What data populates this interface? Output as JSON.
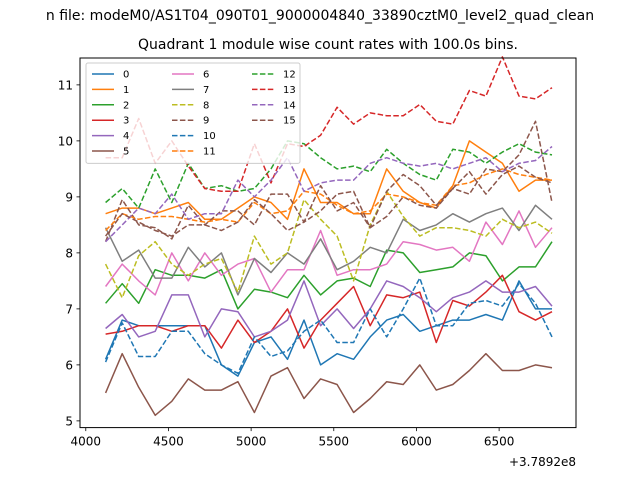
{
  "chart_data": {
    "type": "line",
    "suptitle": "n file: modeM0/AS1T04_090T01_9000004840_33890cztM0_level2_quad_clean",
    "title": "Quadrant 1 module wise count rates with 100.0s bins.",
    "xlabel": "",
    "ylabel": "",
    "x_offset_label": "+3.7892e8",
    "xlim": [
      3965,
      6965
    ],
    "ylim": [
      4.88,
      11.48
    ],
    "x_ticks": [
      4000,
      4500,
      5000,
      5500,
      6000,
      6500
    ],
    "x_tick_labels": [
      "4000",
      "4500",
      "5000",
      "5500",
      "6000",
      "6500"
    ],
    "y_ticks": [
      5,
      6,
      7,
      8,
      9,
      10,
      11
    ],
    "y_tick_labels": [
      "5",
      "6",
      "7",
      "8",
      "9",
      "10",
      "11"
    ],
    "legend_position": "top-left",
    "legend_columns": 3,
    "x": [
      4120,
      4220,
      4320,
      4420,
      4520,
      4620,
      4720,
      4820,
      4920,
      5020,
      5120,
      5220,
      5320,
      5420,
      5520,
      5620,
      5720,
      5820,
      5920,
      6020,
      6120,
      6220,
      6320,
      6420,
      6520,
      6620,
      6720,
      6820
    ],
    "series": [
      {
        "name": "0",
        "color": "#1f77b4",
        "dash": "solid",
        "values": [
          6.1,
          6.8,
          6.7,
          6.7,
          6.7,
          6.7,
          6.7,
          6.0,
          5.8,
          6.4,
          6.5,
          6.1,
          6.8,
          6.0,
          6.2,
          6.1,
          6.5,
          6.8,
          6.9,
          6.6,
          6.7,
          6.8,
          6.8,
          6.9,
          6.8,
          7.5,
          7.0,
          7.0
        ]
      },
      {
        "name": "1",
        "color": "#ff7f0e",
        "dash": "solid",
        "values": [
          8.7,
          8.8,
          8.8,
          8.7,
          8.8,
          8.9,
          8.6,
          8.6,
          8.8,
          9.0,
          8.9,
          8.6,
          9.5,
          8.9,
          8.9,
          8.7,
          8.7,
          9.5,
          9.1,
          8.9,
          8.8,
          9.2,
          10.0,
          9.8,
          9.6,
          9.1,
          9.3,
          9.3
        ]
      },
      {
        "name": "2",
        "color": "#2ca02c",
        "dash": "solid",
        "values": [
          7.1,
          7.45,
          7.1,
          7.7,
          7.6,
          7.6,
          7.55,
          7.7,
          7.0,
          7.35,
          7.3,
          7.2,
          7.6,
          7.25,
          7.5,
          7.55,
          7.4,
          8.05,
          8.0,
          7.65,
          7.7,
          7.75,
          8.0,
          7.95,
          7.5,
          7.75,
          7.75,
          8.2
        ]
      },
      {
        "name": "3",
        "color": "#d62728",
        "dash": "solid",
        "values": [
          6.55,
          6.6,
          6.7,
          6.7,
          6.6,
          6.7,
          6.7,
          6.3,
          6.8,
          6.4,
          6.6,
          7.0,
          6.3,
          6.8,
          7.1,
          7.4,
          6.7,
          7.25,
          7.2,
          7.3,
          6.4,
          7.15,
          7.05,
          7.3,
          7.6,
          6.95,
          6.8,
          6.95
        ]
      },
      {
        "name": "4",
        "color": "#9467bd",
        "dash": "solid",
        "values": [
          6.65,
          6.9,
          6.5,
          6.6,
          7.25,
          7.25,
          6.5,
          7.0,
          6.95,
          6.5,
          6.6,
          6.8,
          7.5,
          6.7,
          7.0,
          6.65,
          7.0,
          7.5,
          7.4,
          7.2,
          6.95,
          7.2,
          7.3,
          7.5,
          7.3,
          7.3,
          7.4,
          7.05
        ]
      },
      {
        "name": "5",
        "color": "#8c564b",
        "dash": "solid",
        "values": [
          5.5,
          6.2,
          5.6,
          5.1,
          5.35,
          5.75,
          5.55,
          5.55,
          5.7,
          5.15,
          5.8,
          5.95,
          5.4,
          5.75,
          5.65,
          5.15,
          5.4,
          5.7,
          5.65,
          6.0,
          5.55,
          5.65,
          5.9,
          6.2,
          5.9,
          5.9,
          6.0,
          5.95
        ]
      },
      {
        "name": "6",
        "color": "#e377c2",
        "dash": "solid",
        "values": [
          7.4,
          7.8,
          7.5,
          7.25,
          8.0,
          7.5,
          8.0,
          7.6,
          7.8,
          7.9,
          7.3,
          7.7,
          7.7,
          8.4,
          7.6,
          7.7,
          7.7,
          7.8,
          8.2,
          8.15,
          8.05,
          8.1,
          7.85,
          8.55,
          8.15,
          8.75,
          8.1,
          8.45
        ]
      },
      {
        "name": "7",
        "color": "#7f7f7f",
        "dash": "solid",
        "values": [
          8.45,
          7.85,
          8.05,
          7.55,
          7.55,
          8.1,
          7.75,
          8.0,
          7.25,
          7.9,
          7.65,
          8.0,
          7.8,
          8.25,
          7.7,
          7.85,
          8.1,
          8.0,
          8.6,
          8.4,
          8.5,
          8.7,
          8.55,
          8.7,
          8.8,
          8.4,
          8.85,
          8.6
        ]
      },
      {
        "name": "8",
        "color": "#bcbd22",
        "dash": "dashed",
        "values": [
          7.8,
          7.2,
          7.95,
          8.2,
          7.8,
          7.6,
          7.8,
          7.9,
          7.3,
          8.3,
          7.8,
          8.0,
          8.95,
          8.6,
          8.3,
          7.5,
          8.5,
          9.1,
          8.65,
          8.3,
          8.45,
          8.45,
          8.4,
          8.3,
          8.6,
          8.45,
          8.55,
          8.35
        ]
      },
      {
        "name": "9",
        "color": "#8c564b",
        "dash": "dashed",
        "values": [
          8.2,
          8.95,
          8.5,
          8.45,
          8.25,
          8.85,
          8.5,
          8.75,
          8.75,
          8.5,
          9.05,
          9.05,
          8.55,
          8.75,
          9.05,
          9.1,
          8.45,
          8.65,
          9.0,
          8.85,
          8.8,
          9.15,
          9.05,
          9.5,
          9.45,
          9.75,
          10.35,
          8.9
        ]
      },
      {
        "name": "10",
        "color": "#1f77b4",
        "dash": "dashed",
        "values": [
          6.05,
          6.75,
          6.15,
          6.15,
          6.6,
          6.6,
          6.2,
          6.0,
          5.85,
          6.5,
          6.15,
          6.25,
          6.6,
          6.8,
          6.4,
          6.4,
          7.0,
          6.5,
          7.0,
          7.55,
          6.7,
          6.7,
          7.1,
          7.15,
          7.05,
          7.45,
          7.1,
          6.5
        ]
      },
      {
        "name": "11",
        "color": "#ff7f0e",
        "dash": "dashed",
        "values": [
          8.4,
          8.7,
          8.6,
          8.65,
          8.65,
          8.6,
          8.55,
          8.6,
          8.55,
          8.9,
          8.7,
          8.75,
          9.1,
          9.05,
          8.85,
          8.7,
          8.75,
          9.05,
          9.0,
          8.9,
          8.85,
          9.2,
          9.25,
          9.4,
          9.5,
          9.4,
          9.35,
          9.3
        ]
      },
      {
        "name": "12",
        "color": "#2ca02c",
        "dash": "dashed",
        "values": [
          8.9,
          9.15,
          8.8,
          9.5,
          8.9,
          9.6,
          9.15,
          9.2,
          9.1,
          9.15,
          9.5,
          10.0,
          9.95,
          9.7,
          9.5,
          9.55,
          9.45,
          9.85,
          9.6,
          9.4,
          9.3,
          9.85,
          9.8,
          9.6,
          9.8,
          9.95,
          9.8,
          9.75
        ]
      },
      {
        "name": "13",
        "color": "#d62728",
        "dash": "dashed",
        "values": [
          9.7,
          9.7,
          10.4,
          9.6,
          10.0,
          9.55,
          9.15,
          9.1,
          9.1,
          9.95,
          9.25,
          9.95,
          9.9,
          10.1,
          10.6,
          10.3,
          10.5,
          10.45,
          10.45,
          10.65,
          10.35,
          10.3,
          10.9,
          10.8,
          11.5,
          10.8,
          10.75,
          10.95
        ]
      },
      {
        "name": "14",
        "color": "#9467bd",
        "dash": "dashed",
        "values": [
          8.2,
          8.5,
          8.8,
          8.7,
          9.05,
          8.6,
          8.7,
          8.7,
          9.3,
          9.0,
          9.3,
          9.7,
          9.1,
          9.25,
          9.3,
          9.3,
          9.6,
          9.7,
          9.6,
          9.55,
          9.6,
          9.5,
          9.6,
          9.7,
          9.45,
          9.6,
          9.65,
          9.9
        ]
      },
      {
        "name": "15",
        "color": "#8c564b",
        "dash": "dashed",
        "values": [
          8.3,
          8.7,
          8.55,
          8.4,
          8.3,
          8.5,
          8.5,
          8.4,
          8.55,
          8.95,
          8.7,
          8.4,
          8.55,
          9.2,
          8.75,
          8.9,
          8.45,
          9.1,
          9.4,
          9.2,
          8.85,
          9.15,
          9.45,
          9.05,
          9.4,
          9.55,
          9.35,
          9.25
        ]
      }
    ]
  }
}
